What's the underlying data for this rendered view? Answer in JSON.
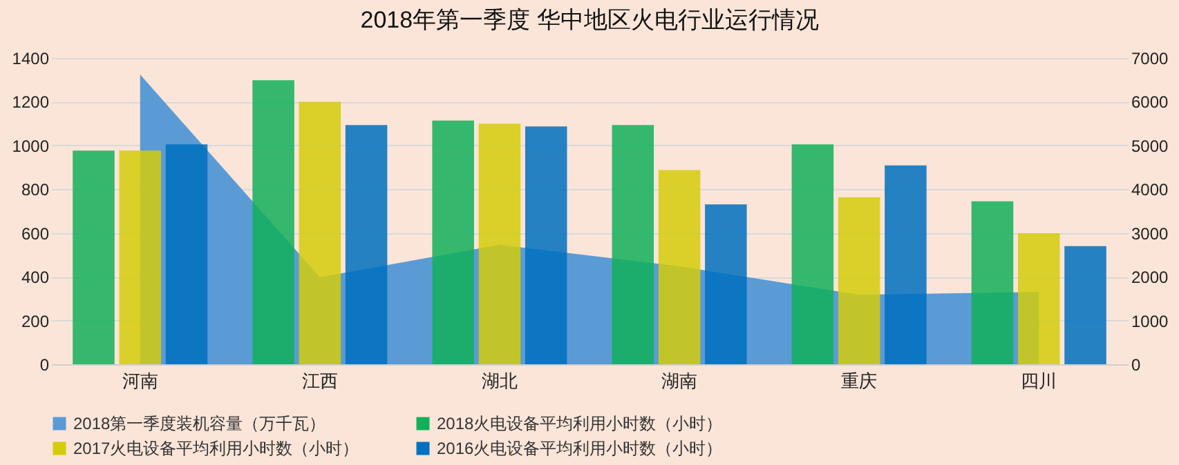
{
  "chart_data": {
    "type": "bar",
    "title": "2018年第一季度 华中地区火电行业运行情况",
    "categories": [
      "河南",
      "江西",
      "湖北",
      "湖南",
      "重庆",
      "四川"
    ],
    "series": [
      {
        "name": "2018第一季度装机容量（万千瓦）",
        "type": "area",
        "axis": "y2",
        "color": "#5b9bd5",
        "values": [
          6620,
          1990,
          2730,
          2240,
          1590,
          1650
        ]
      },
      {
        "name": "2018火电设备平均利用小时数（小时）",
        "color": "#12b05a",
        "values": [
          977,
          1298,
          1114,
          1093,
          1005,
          745
        ]
      },
      {
        "name": "2017火电设备平均利用小时数（小时）",
        "color": "#d4cc0a",
        "values": [
          977,
          1200,
          1100,
          888,
          763,
          599
        ]
      },
      {
        "name": "2016火电设备平均利用小时数（小时）",
        "color": "#0070c0",
        "values": [
          1005,
          1093,
          1087,
          731,
          909,
          540
        ]
      }
    ],
    "ylim": [
      0,
      1400
    ],
    "yticks": [
      0,
      200,
      400,
      600,
      800,
      1000,
      1200,
      1400
    ],
    "y2lim": [
      0,
      7000
    ],
    "y2ticks": [
      0,
      1000,
      2000,
      3000,
      4000,
      5000,
      6000,
      7000
    ],
    "grid": "y",
    "legend": "bottom"
  }
}
